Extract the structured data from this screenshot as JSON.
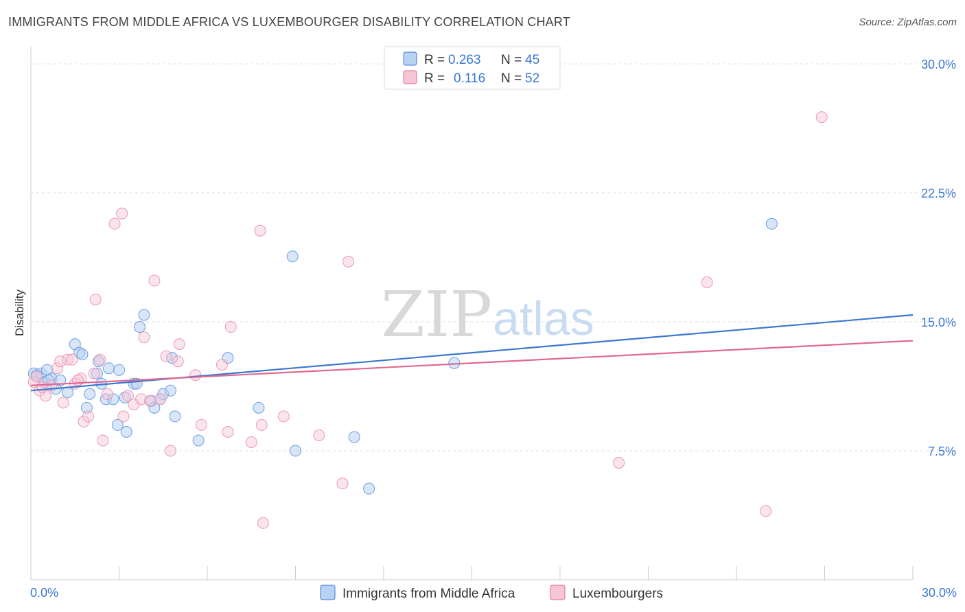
{
  "header": {
    "title": "IMMIGRANTS FROM MIDDLE AFRICA VS LUXEMBOURGER DISABILITY CORRELATION CHART",
    "source": "Source: ZipAtlas.com"
  },
  "watermark": {
    "zip": "ZIP",
    "atlas": "atlas"
  },
  "colors": {
    "blue": "#3a78d0",
    "blue_fill": "#b8d2f3",
    "pink": "#e06891",
    "pink_fill": "#f7c6d6",
    "grid": "#dddddd",
    "axis_text": "#3a78d0"
  },
  "legend": {
    "rows": [
      {
        "r_label": "R =",
        "r_value": "0.263",
        "n_label": "N =",
        "n_value": "45"
      },
      {
        "r_label": "R =",
        "r_value": "0.116",
        "n_label": "N =",
        "n_value": "52"
      }
    ]
  },
  "chart_data": {
    "type": "scatter",
    "title": "IMMIGRANTS FROM MIDDLE AFRICA VS LUXEMBOURGER DISABILITY CORRELATION CHART",
    "xlabel": "",
    "ylabel": "Disability",
    "xlim": [
      0,
      30
    ],
    "ylim": [
      0,
      31
    ],
    "x_tick_labels": [
      "0.0%",
      "30.0%"
    ],
    "y_ticks": [
      7.5,
      15.0,
      22.5,
      30.0
    ],
    "y_tick_labels": [
      "7.5%",
      "15.0%",
      "22.5%",
      "30.0%"
    ],
    "grid": "horizontal dashed",
    "legend_position": "top-center",
    "series": [
      {
        "name": "Immigrants from Middle Africa",
        "color": "#3a78d0",
        "R": 0.263,
        "N": 45,
        "trend": {
          "x": [
            0,
            30
          ],
          "y": [
            11.0,
            15.4
          ]
        },
        "points": [
          [
            0.1,
            12.0
          ],
          [
            0.35,
            12.0
          ],
          [
            0.45,
            11.5
          ],
          [
            0.55,
            12.2
          ],
          [
            0.7,
            11.7
          ],
          [
            0.85,
            11.1
          ],
          [
            1.0,
            11.6
          ],
          [
            1.25,
            10.9
          ],
          [
            1.5,
            13.7
          ],
          [
            1.65,
            13.2
          ],
          [
            1.75,
            13.1
          ],
          [
            1.9,
            10.0
          ],
          [
            2.0,
            10.8
          ],
          [
            2.25,
            12.0
          ],
          [
            2.3,
            12.7
          ],
          [
            2.4,
            11.4
          ],
          [
            2.55,
            10.5
          ],
          [
            2.65,
            12.3
          ],
          [
            2.8,
            10.5
          ],
          [
            2.95,
            9.0
          ],
          [
            3.0,
            12.2
          ],
          [
            3.2,
            10.6
          ],
          [
            3.25,
            8.6
          ],
          [
            3.5,
            11.4
          ],
          [
            3.6,
            11.4
          ],
          [
            3.7,
            14.7
          ],
          [
            3.85,
            15.4
          ],
          [
            4.1,
            10.4
          ],
          [
            4.2,
            10.0
          ],
          [
            4.4,
            10.5
          ],
          [
            4.5,
            10.8
          ],
          [
            4.75,
            11.0
          ],
          [
            4.8,
            12.9
          ],
          [
            4.9,
            9.5
          ],
          [
            5.7,
            8.1
          ],
          [
            6.7,
            12.9
          ],
          [
            7.75,
            10.0
          ],
          [
            8.9,
            18.8
          ],
          [
            9.0,
            7.5
          ],
          [
            11.0,
            8.3
          ],
          [
            11.5,
            5.3
          ],
          [
            14.4,
            12.6
          ],
          [
            25.2,
            20.7
          ],
          [
            0.2,
            11.9
          ],
          [
            0.6,
            11.6
          ]
        ]
      },
      {
        "name": "Luxembourgers",
        "color": "#e06891",
        "R": 0.116,
        "N": 52,
        "trend": {
          "x": [
            0,
            30
          ],
          "y": [
            11.3,
            13.9
          ]
        },
        "points": [
          [
            0.1,
            11.5
          ],
          [
            0.3,
            11.0
          ],
          [
            0.5,
            10.7
          ],
          [
            0.7,
            11.3
          ],
          [
            0.9,
            12.3
          ],
          [
            1.0,
            12.7
          ],
          [
            1.1,
            10.3
          ],
          [
            1.25,
            12.8
          ],
          [
            1.4,
            12.8
          ],
          [
            1.5,
            11.4
          ],
          [
            1.7,
            11.7
          ],
          [
            1.8,
            9.2
          ],
          [
            1.95,
            9.5
          ],
          [
            2.15,
            12.0
          ],
          [
            2.2,
            16.3
          ],
          [
            2.35,
            12.8
          ],
          [
            2.45,
            8.1
          ],
          [
            2.6,
            10.8
          ],
          [
            2.85,
            20.7
          ],
          [
            3.1,
            21.3
          ],
          [
            3.15,
            9.5
          ],
          [
            3.3,
            10.7
          ],
          [
            3.5,
            10.2
          ],
          [
            3.75,
            10.5
          ],
          [
            3.85,
            14.1
          ],
          [
            4.05,
            10.4
          ],
          [
            4.2,
            17.4
          ],
          [
            4.4,
            10.5
          ],
          [
            4.6,
            13.0
          ],
          [
            4.75,
            7.5
          ],
          [
            5.0,
            12.7
          ],
          [
            5.05,
            13.7
          ],
          [
            5.6,
            11.9
          ],
          [
            5.8,
            9.0
          ],
          [
            6.5,
            12.5
          ],
          [
            6.7,
            8.6
          ],
          [
            6.8,
            14.7
          ],
          [
            7.5,
            8.0
          ],
          [
            7.8,
            20.3
          ],
          [
            7.85,
            9.0
          ],
          [
            7.9,
            3.3
          ],
          [
            8.6,
            9.5
          ],
          [
            9.8,
            8.4
          ],
          [
            10.6,
            5.6
          ],
          [
            10.8,
            18.5
          ],
          [
            20.0,
            6.8
          ],
          [
            23.0,
            17.3
          ],
          [
            25.0,
            4.0
          ],
          [
            26.9,
            26.9
          ],
          [
            0.2,
            11.8
          ],
          [
            0.4,
            11.2
          ],
          [
            1.6,
            11.6
          ]
        ]
      }
    ]
  },
  "bottom_legend": {
    "items": [
      {
        "label": "Immigrants from Middle Africa"
      },
      {
        "label": "Luxembourgers"
      }
    ]
  }
}
